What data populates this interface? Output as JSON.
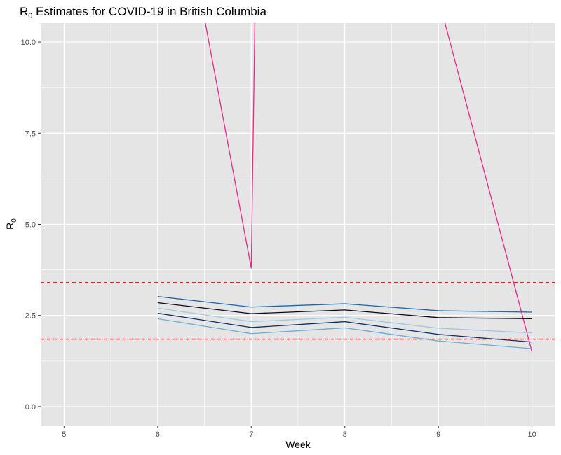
{
  "chart_data": {
    "type": "line",
    "title": "R",
    "title_subscript": "0",
    "title_rest": " Estimates for COVID-19 in British Columbia",
    "xlabel": "Week",
    "ylabel": "R",
    "ylabel_subscript": "0",
    "xlim": [
      4.75,
      10.25
    ],
    "ylim": [
      -0.52,
      10.52
    ],
    "x_ticks": [
      5,
      6,
      7,
      8,
      9,
      10
    ],
    "x_tick_labels": [
      "5",
      "6",
      "7",
      "8",
      "9",
      "10"
    ],
    "y_ticks": [
      0,
      2.5,
      5,
      7.5,
      10
    ],
    "y_tick_labels": [
      "0.0",
      "2.5",
      "5.0",
      "7.5",
      "10.0"
    ],
    "grid": true,
    "legend": "none",
    "panel_background": "#e5e5e5",
    "grid_color": "#ffffff",
    "reference_lines": [
      {
        "y": 3.4,
        "color": "#ff0000",
        "style": "dashed"
      },
      {
        "y": 1.85,
        "color": "#ff0000",
        "style": "dashed"
      }
    ],
    "series": [
      {
        "color": "#e7298a",
        "x": [
          6,
          7,
          7.05,
          9,
          10
        ],
        "y": [
          17.5,
          3.8,
          12.5,
          11.2,
          1.5
        ]
      },
      {
        "color": "#2166ac",
        "x": [
          6,
          7,
          8,
          9,
          10
        ],
        "y": [
          3.02,
          2.73,
          2.82,
          2.63,
          2.59
        ]
      },
      {
        "color": "#0b0b1f",
        "x": [
          6,
          7,
          8,
          9,
          10
        ],
        "y": [
          2.85,
          2.55,
          2.65,
          2.44,
          2.41
        ]
      },
      {
        "color": "#9ecae1",
        "x": [
          6,
          7,
          8,
          9,
          10
        ],
        "y": [
          2.7,
          2.33,
          2.45,
          2.15,
          2.02
        ]
      },
      {
        "color": "#08306b",
        "x": [
          6,
          7,
          8,
          9,
          10
        ],
        "y": [
          2.56,
          2.17,
          2.33,
          1.98,
          1.77
        ]
      },
      {
        "color": "#6baed6",
        "x": [
          6,
          7,
          8,
          9,
          10
        ],
        "y": [
          2.41,
          2.0,
          2.16,
          1.8,
          1.59
        ]
      }
    ]
  }
}
